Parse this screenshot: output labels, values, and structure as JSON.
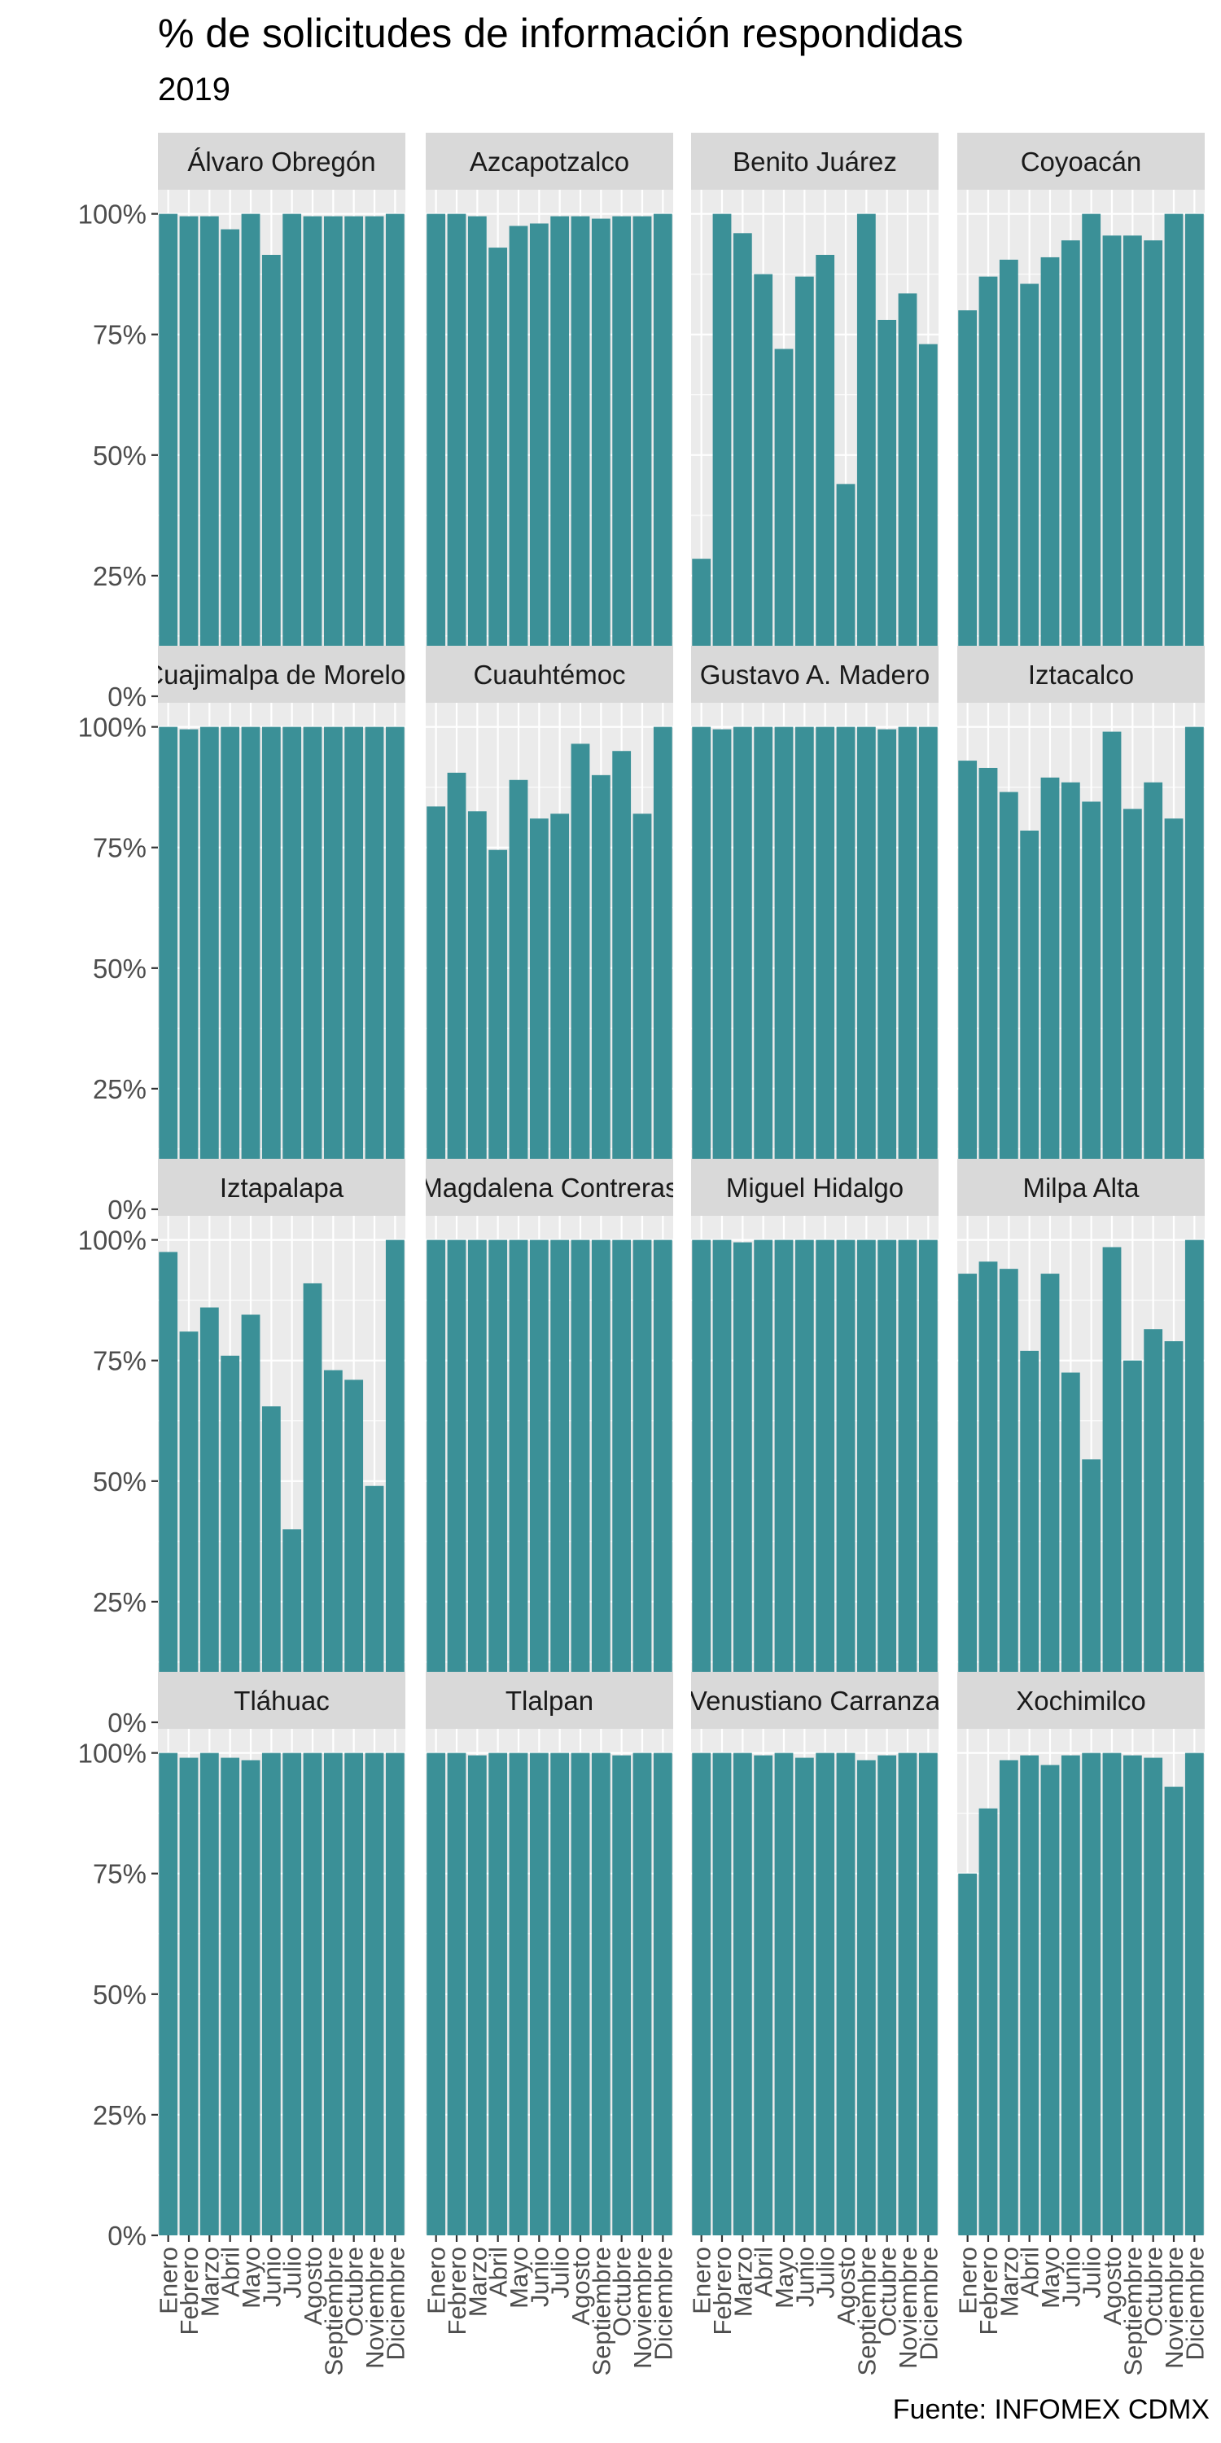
{
  "title": "% de solicitudes de información respondidas",
  "subtitle": "2019",
  "caption": "Fuente: INFOMEX CDMX",
  "colors": {
    "bar": "#3b9097",
    "panel_background": "#ebebeb",
    "strip_background": "#d9d9d9",
    "gridlines": "#ffffff"
  },
  "chart_data": {
    "type": "bar",
    "layout": "facet grid, 4 rows x 4 columns",
    "categories": [
      "Enero",
      "Febrero",
      "Marzo",
      "Abril",
      "Mayo",
      "Junio",
      "Julio",
      "Agosto",
      "Septiembre",
      "Octubre",
      "Noviembre",
      "Diciembre"
    ],
    "y_tick_labels": [
      "0%",
      "25%",
      "50%",
      "75%",
      "100%"
    ],
    "y_ticks": [
      0,
      25,
      50,
      75,
      100
    ],
    "ylim": [
      0,
      105
    ],
    "y_format": "percent",
    "grid": true,
    "legend": "none",
    "panels": [
      {
        "label": "Álvaro Obregón",
        "values": [
          100,
          99.5,
          99.5,
          96.8,
          100,
          91.5,
          100,
          99.5,
          99.5,
          99.5,
          99.5,
          100
        ]
      },
      {
        "label": "Azcapotzalco",
        "values": [
          100,
          100,
          99.5,
          93,
          97.5,
          98,
          99.5,
          99.5,
          99,
          99.5,
          99.5,
          100
        ]
      },
      {
        "label": "Benito Juárez",
        "values": [
          28.5,
          100,
          96,
          87.5,
          72,
          87,
          91.5,
          44,
          100,
          78,
          83.5,
          73
        ]
      },
      {
        "label": "Coyoacán",
        "values": [
          80,
          87,
          90.5,
          85.5,
          91,
          94.5,
          100,
          95.5,
          95.5,
          94.5,
          100,
          100
        ]
      },
      {
        "label": "Cuajimalpa de Morelos",
        "values": [
          100,
          99.5,
          100,
          100,
          100,
          100,
          100,
          100,
          100,
          100,
          100,
          100
        ]
      },
      {
        "label": "Cuauhtémoc",
        "values": [
          83.5,
          90.5,
          82.5,
          74.5,
          89,
          81,
          82,
          96.5,
          90,
          95,
          82,
          100
        ]
      },
      {
        "label": "Gustavo A. Madero",
        "values": [
          100,
          99.5,
          100,
          100,
          100,
          100,
          100,
          100,
          100,
          99.5,
          100,
          100
        ]
      },
      {
        "label": "Iztacalco",
        "values": [
          93,
          91.5,
          86.5,
          78.5,
          89.5,
          88.5,
          84.5,
          99,
          83,
          88.5,
          81,
          100
        ]
      },
      {
        "label": "Iztapalapa",
        "values": [
          97.5,
          81,
          86,
          76,
          84.5,
          65.5,
          40,
          91,
          73,
          71,
          49,
          100
        ]
      },
      {
        "label": "Magdalena Contreras",
        "values": [
          100,
          100,
          100,
          100,
          100,
          100,
          100,
          100,
          100,
          100,
          100,
          100
        ]
      },
      {
        "label": "Miguel Hidalgo",
        "values": [
          100,
          100,
          99.5,
          100,
          100,
          100,
          100,
          100,
          100,
          100,
          100,
          100
        ]
      },
      {
        "label": "Milpa Alta",
        "values": [
          93,
          95.5,
          94,
          77,
          93,
          72.5,
          54.5,
          98.5,
          75,
          81.5,
          79,
          100
        ]
      },
      {
        "label": "Tláhuac",
        "values": [
          100,
          99,
          100,
          99,
          98.5,
          100,
          100,
          100,
          100,
          100,
          100,
          100
        ]
      },
      {
        "label": "Tlalpan",
        "values": [
          100,
          100,
          99.5,
          100,
          100,
          100,
          100,
          100,
          100,
          99.5,
          100,
          100
        ]
      },
      {
        "label": "Venustiano Carranza",
        "values": [
          100,
          100,
          100,
          99.5,
          100,
          99,
          100,
          100,
          98.5,
          99.5,
          100,
          100
        ]
      },
      {
        "label": "Xochimilco",
        "values": [
          75,
          88.5,
          98.5,
          99.5,
          97.5,
          99.5,
          100,
          100,
          99.5,
          99,
          93,
          100
        ]
      }
    ]
  }
}
